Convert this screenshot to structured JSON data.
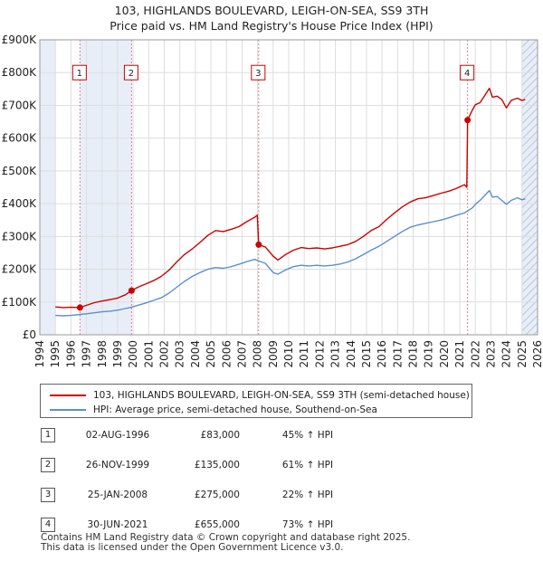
{
  "chart_data": {
    "type": "line",
    "title": "103, HIGHLANDS BOULEVARD, LEIGH-ON-SEA, SS9 3TH",
    "subtitle": "Price paid vs. HM Land Registry's House Price Index (HPI)",
    "xlabel": "",
    "ylabel": "",
    "xlim": [
      1994,
      2026
    ],
    "ylim": [
      0,
      900000
    ],
    "x_ticks": [
      "1994",
      "1995",
      "1996",
      "1997",
      "1998",
      "1999",
      "2000",
      "2001",
      "2002",
      "2003",
      "2004",
      "2005",
      "2006",
      "2007",
      "2008",
      "2009",
      "2010",
      "2011",
      "2012",
      "2013",
      "2014",
      "2015",
      "2016",
      "2017",
      "2018",
      "2019",
      "2020",
      "2021",
      "2022",
      "2023",
      "2024",
      "2025",
      "2026"
    ],
    "y_ticks": [
      {
        "value": 0,
        "label": "£0"
      },
      {
        "value": 100000,
        "label": "£100K"
      },
      {
        "value": 200000,
        "label": "£200K"
      },
      {
        "value": 300000,
        "label": "£300K"
      },
      {
        "value": 400000,
        "label": "£400K"
      },
      {
        "value": 500000,
        "label": "£500K"
      },
      {
        "value": 600000,
        "label": "£600K"
      },
      {
        "value": 700000,
        "label": "£700K"
      },
      {
        "value": 800000,
        "label": "£800K"
      },
      {
        "value": 900000,
        "label": "£900K"
      }
    ],
    "grid": true,
    "series": [
      {
        "name": "103, HIGHLANDS BOULEVARD, LEIGH-ON-SEA, SS9 3TH (semi-detached house)",
        "color": "#cc0000",
        "points": [
          [
            1995.0,
            85000
          ],
          [
            1995.5,
            83000
          ],
          [
            1996.0,
            84000
          ],
          [
            1996.58,
            83000
          ],
          [
            1997.0,
            90000
          ],
          [
            1997.5,
            98000
          ],
          [
            1998.0,
            103000
          ],
          [
            1998.5,
            107000
          ],
          [
            1999.0,
            112000
          ],
          [
            1999.5,
            122000
          ],
          [
            1999.9,
            135000
          ],
          [
            2000.3,
            145000
          ],
          [
            2000.8,
            155000
          ],
          [
            2001.3,
            165000
          ],
          [
            2001.8,
            178000
          ],
          [
            2002.3,
            197000
          ],
          [
            2002.8,
            222000
          ],
          [
            2003.3,
            245000
          ],
          [
            2003.8,
            262000
          ],
          [
            2004.3,
            282000
          ],
          [
            2004.8,
            303000
          ],
          [
            2005.3,
            318000
          ],
          [
            2005.8,
            315000
          ],
          [
            2006.3,
            322000
          ],
          [
            2006.8,
            330000
          ],
          [
            2007.3,
            345000
          ],
          [
            2007.8,
            358000
          ],
          [
            2007.98,
            365000
          ],
          [
            2008.07,
            275000
          ],
          [
            2008.5,
            268000
          ],
          [
            2009.0,
            240000
          ],
          [
            2009.3,
            228000
          ],
          [
            2009.8,
            245000
          ],
          [
            2010.3,
            258000
          ],
          [
            2010.8,
            266000
          ],
          [
            2011.3,
            263000
          ],
          [
            2011.8,
            265000
          ],
          [
            2012.3,
            262000
          ],
          [
            2012.8,
            265000
          ],
          [
            2013.3,
            270000
          ],
          [
            2013.8,
            275000
          ],
          [
            2014.3,
            285000
          ],
          [
            2014.8,
            300000
          ],
          [
            2015.3,
            318000
          ],
          [
            2015.8,
            330000
          ],
          [
            2016.3,
            352000
          ],
          [
            2016.8,
            372000
          ],
          [
            2017.3,
            390000
          ],
          [
            2017.8,
            405000
          ],
          [
            2018.3,
            415000
          ],
          [
            2018.8,
            418000
          ],
          [
            2019.3,
            425000
          ],
          [
            2019.8,
            432000
          ],
          [
            2020.3,
            438000
          ],
          [
            2020.8,
            447000
          ],
          [
            2021.3,
            458000
          ],
          [
            2021.45,
            450000
          ],
          [
            2021.5,
            655000
          ],
          [
            2021.8,
            685000
          ],
          [
            2022.0,
            702000
          ],
          [
            2022.3,
            708000
          ],
          [
            2022.6,
            730000
          ],
          [
            2022.9,
            752000
          ],
          [
            2023.1,
            725000
          ],
          [
            2023.4,
            728000
          ],
          [
            2023.7,
            718000
          ],
          [
            2024.0,
            692000
          ],
          [
            2024.3,
            715000
          ],
          [
            2024.7,
            722000
          ],
          [
            2025.0,
            715000
          ],
          [
            2025.2,
            718000
          ]
        ]
      },
      {
        "name": "HPI: Average price, semi-detached house, Southend-on-Sea",
        "color": "#5b8fcf",
        "points": [
          [
            1995.0,
            59000
          ],
          [
            1995.5,
            58000
          ],
          [
            1996.0,
            59000
          ],
          [
            1996.58,
            62000
          ],
          [
            1997.0,
            64000
          ],
          [
            1997.5,
            67000
          ],
          [
            1998.0,
            70000
          ],
          [
            1998.5,
            72000
          ],
          [
            1999.0,
            75000
          ],
          [
            1999.5,
            80000
          ],
          [
            1999.9,
            84000
          ],
          [
            2000.3,
            90000
          ],
          [
            2000.8,
            97000
          ],
          [
            2001.3,
            105000
          ],
          [
            2001.8,
            113000
          ],
          [
            2002.3,
            127000
          ],
          [
            2002.8,
            145000
          ],
          [
            2003.3,
            163000
          ],
          [
            2003.8,
            178000
          ],
          [
            2004.3,
            190000
          ],
          [
            2004.8,
            200000
          ],
          [
            2005.3,
            205000
          ],
          [
            2005.8,
            203000
          ],
          [
            2006.3,
            208000
          ],
          [
            2006.8,
            215000
          ],
          [
            2007.3,
            223000
          ],
          [
            2007.8,
            230000
          ],
          [
            2008.1,
            225000
          ],
          [
            2008.5,
            218000
          ],
          [
            2009.0,
            190000
          ],
          [
            2009.3,
            185000
          ],
          [
            2009.8,
            198000
          ],
          [
            2010.3,
            208000
          ],
          [
            2010.8,
            212000
          ],
          [
            2011.3,
            210000
          ],
          [
            2011.8,
            212000
          ],
          [
            2012.3,
            210000
          ],
          [
            2012.8,
            212000
          ],
          [
            2013.3,
            216000
          ],
          [
            2013.8,
            222000
          ],
          [
            2014.3,
            232000
          ],
          [
            2014.8,
            245000
          ],
          [
            2015.3,
            258000
          ],
          [
            2015.8,
            270000
          ],
          [
            2016.3,
            285000
          ],
          [
            2016.8,
            300000
          ],
          [
            2017.3,
            315000
          ],
          [
            2017.8,
            328000
          ],
          [
            2018.3,
            335000
          ],
          [
            2018.8,
            340000
          ],
          [
            2019.3,
            345000
          ],
          [
            2019.8,
            350000
          ],
          [
            2020.3,
            357000
          ],
          [
            2020.8,
            365000
          ],
          [
            2021.3,
            372000
          ],
          [
            2021.5,
            378000
          ],
          [
            2021.8,
            387000
          ],
          [
            2022.0,
            398000
          ],
          [
            2022.3,
            410000
          ],
          [
            2022.6,
            425000
          ],
          [
            2022.9,
            440000
          ],
          [
            2023.1,
            420000
          ],
          [
            2023.4,
            422000
          ],
          [
            2023.7,
            410000
          ],
          [
            2024.0,
            398000
          ],
          [
            2024.3,
            410000
          ],
          [
            2024.7,
            418000
          ],
          [
            2025.0,
            412000
          ],
          [
            2025.2,
            415000
          ]
        ]
      }
    ],
    "sales": [
      {
        "n": "1",
        "x": 1996.58,
        "value": 83000,
        "date": "02-AUG-1996",
        "price": "£83,000",
        "hpi": "45% ↑ HPI"
      },
      {
        "n": "2",
        "x": 1999.9,
        "value": 135000,
        "date": "26-NOV-1999",
        "price": "£135,000",
        "hpi": "61% ↑ HPI"
      },
      {
        "n": "3",
        "x": 2008.07,
        "value": 275000,
        "date": "25-JAN-2008",
        "price": "£275,000",
        "hpi": "22% ↑ HPI"
      },
      {
        "n": "4",
        "x": 2021.5,
        "value": 655000,
        "date": "30-JUN-2021",
        "price": "£655,000",
        "hpi": "73% ↑ HPI"
      }
    ],
    "shaded_ranges": [
      [
        1994.0,
        1995.0
      ],
      [
        1996.58,
        1999.9
      ],
      [
        2025.0,
        2026.0
      ]
    ]
  },
  "legend": {
    "property_label": "103, HIGHLANDS BOULEVARD, LEIGH-ON-SEA, SS9 3TH (semi-detached house)",
    "hpi_label": "HPI: Average price, semi-detached house, Southend-on-Sea"
  },
  "footer": {
    "line1": "Contains HM Land Registry data © Crown copyright and database right 2025.",
    "line2": "This data is licensed under the Open Government Licence v3.0."
  }
}
